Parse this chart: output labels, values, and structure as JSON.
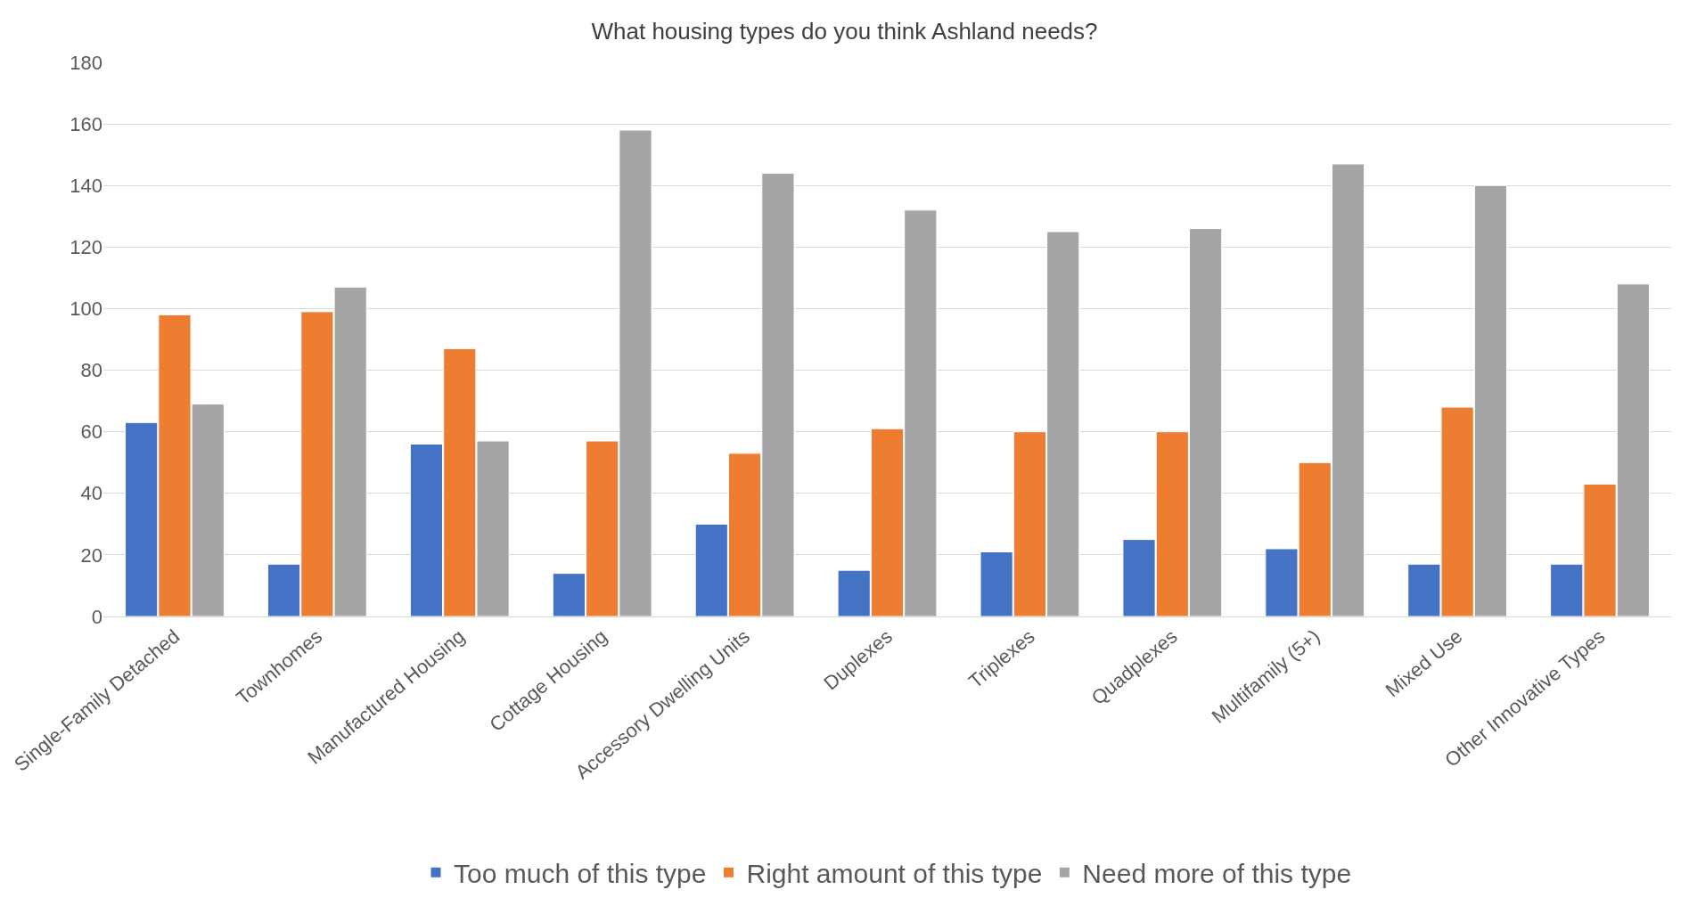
{
  "chart_data": {
    "type": "bar",
    "title": "What housing types do you think Ashland needs?",
    "categories": [
      "Single-Family Detached",
      "Townhomes",
      "Manufactured Housing",
      "Cottage Housing",
      "Accessory Dwelling Units",
      "Duplexes",
      "Triplexes",
      "Quadplexes",
      "Multifamily (5+)",
      "Mixed Use",
      "Other Innovative Types"
    ],
    "series": [
      {
        "name": "Too much of this type",
        "color": "#4472c4",
        "values": [
          63,
          17,
          56,
          14,
          30,
          15,
          21,
          25,
          22,
          17,
          17
        ]
      },
      {
        "name": "Right amount of this type",
        "color": "#ed7d31",
        "values": [
          98,
          99,
          87,
          57,
          53,
          61,
          60,
          60,
          50,
          68,
          43
        ]
      },
      {
        "name": "Need more of this type",
        "color": "#a5a5a5",
        "values": [
          69,
          107,
          57,
          158,
          144,
          132,
          125,
          126,
          147,
          140,
          108
        ]
      }
    ],
    "ylim": [
      0,
      180
    ],
    "yticks": [
      0,
      20,
      40,
      60,
      80,
      100,
      120,
      140,
      160,
      180
    ],
    "grid": "y",
    "legend": "bottom"
  }
}
